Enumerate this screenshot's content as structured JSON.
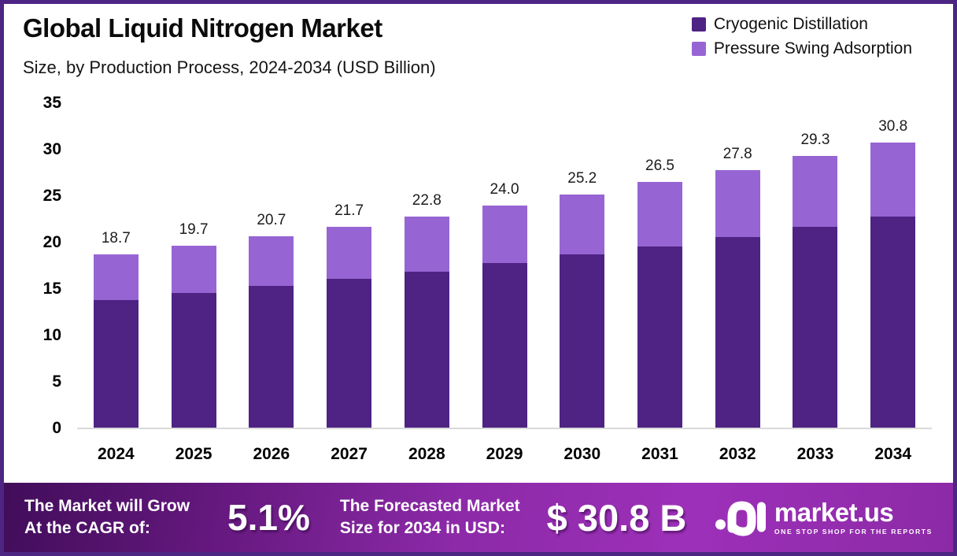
{
  "header": {
    "title": "Global Liquid Nitrogen Market",
    "subtitle": "Size, by Production Process, 2024-2034 (USD Billion)"
  },
  "colors": {
    "cryogenic": "#4e2384",
    "pressure_swing": "#9765d3",
    "border": "#4d2583",
    "baseline": "#d9d9d9",
    "banner_gradient": [
      "#410d5a",
      "#9d30b9",
      "#8c2aa6"
    ]
  },
  "chart_data": {
    "type": "bar",
    "stacked": true,
    "title": "Global Liquid Nitrogen Market Size, by Production Process, 2024-2034 (USD Billion)",
    "xlabel": "",
    "ylabel": "",
    "ylim": [
      0,
      35
    ],
    "y_ticks": [
      0,
      5,
      10,
      15,
      20,
      25,
      30,
      35
    ],
    "grid": false,
    "legend_position": "top-right",
    "categories": [
      "2024",
      "2025",
      "2026",
      "2027",
      "2028",
      "2029",
      "2030",
      "2031",
      "2032",
      "2033",
      "2034"
    ],
    "series": [
      {
        "name": "Cryogenic Distillation",
        "color": "#4e2384",
        "values": [
          13.8,
          14.6,
          15.3,
          16.1,
          16.9,
          17.8,
          18.7,
          19.6,
          20.6,
          21.7,
          22.8
        ]
      },
      {
        "name": "Pressure Swing Adsorption",
        "color": "#9765d3",
        "values": [
          4.9,
          5.1,
          5.4,
          5.6,
          5.9,
          6.2,
          6.5,
          6.9,
          7.2,
          7.6,
          8.0
        ]
      }
    ],
    "totals": [
      18.7,
      19.7,
      20.7,
      21.7,
      22.8,
      24.0,
      25.2,
      26.5,
      27.8,
      29.3,
      30.8
    ],
    "total_labels": [
      "18.7",
      "19.7",
      "20.7",
      "21.7",
      "22.8",
      "24.0",
      "25.2",
      "26.5",
      "27.8",
      "29.3",
      "30.8"
    ]
  },
  "legend": {
    "items": [
      {
        "label": "Cryogenic Distillation",
        "color": "#4e2384"
      },
      {
        "label": "Pressure Swing Adsorption",
        "color": "#9765d3"
      }
    ]
  },
  "banner": {
    "cagr_label_line1": "The Market will Grow",
    "cagr_label_line2": "At the CAGR of:",
    "cagr_value": "5.1%",
    "forecast_label_line1": "The Forecasted Market",
    "forecast_label_line2": "Size for 2034 in USD:",
    "forecast_value": "$ 30.8 B",
    "logo_name": "market.us",
    "logo_tagline": "ONE STOP SHOP FOR THE REPORTS"
  }
}
